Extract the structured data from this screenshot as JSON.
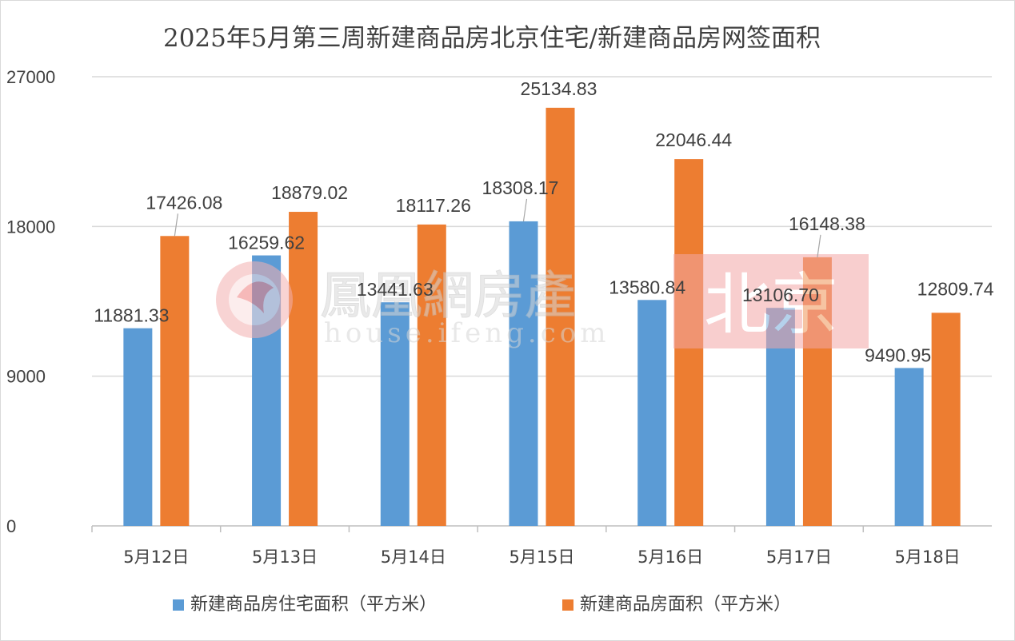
{
  "chart_data": {
    "type": "bar",
    "title": "2025年5月第三周新建商品房北京住宅/新建商品房网签面积",
    "categories": [
      "5月12日",
      "5月13日",
      "5月14日",
      "5月15日",
      "5月16日",
      "5月17日",
      "5月18日"
    ],
    "series": [
      {
        "name": "新建商品房住宅面积（平方米）",
        "color": "#5b9bd5",
        "values": [
          11881.33,
          16259.62,
          13441.63,
          18308.17,
          13580.84,
          13106.7,
          9490.95
        ],
        "labels": [
          "11881.33",
          "16259.62",
          "13441.63",
          "18308.17",
          "13580.84",
          "13106.70",
          "9490.95"
        ]
      },
      {
        "name": "新建商品房面积（平方米）",
        "color": "#ed7d31",
        "values": [
          17426.08,
          18879.02,
          18117.26,
          25134.83,
          22046.44,
          16148.38,
          12809.74
        ],
        "labels": [
          "17426.08",
          "18879.02",
          "18117.26",
          "25134.83",
          "22046.44",
          "16148.38",
          "12809.74"
        ]
      }
    ],
    "yticks": [
      "0",
      "9000",
      "18000",
      "27000"
    ],
    "ylim": [
      0,
      27000
    ],
    "grid": true,
    "legend_position": "bottom"
  },
  "watermark": {
    "brand": "鳳凰網房產",
    "url": "house.ifeng.com",
    "city": "北京"
  }
}
